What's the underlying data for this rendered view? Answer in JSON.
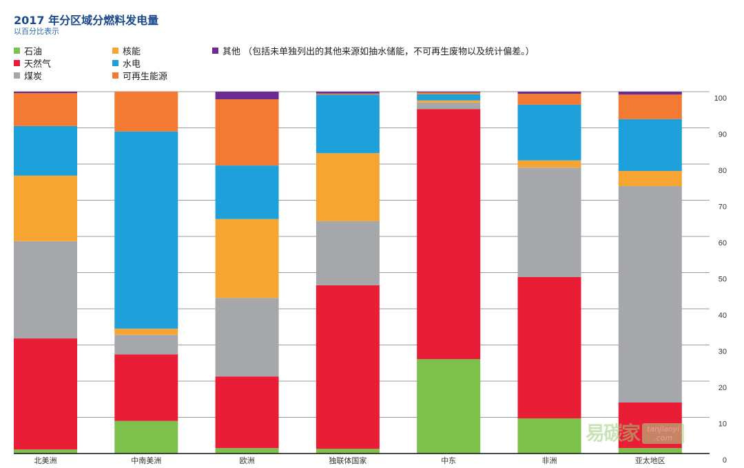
{
  "chart_data": {
    "type": "bar",
    "stacked": true,
    "title": "2017 年分区域分燃料发电量",
    "subtitle": "以百分比表示",
    "xlabel": "",
    "ylabel": "",
    "ylim": [
      0,
      100
    ],
    "yticks": [
      "0",
      "10",
      "20",
      "30",
      "40",
      "50",
      "60",
      "70",
      "80",
      "90",
      "100"
    ],
    "grid": true,
    "legend_position": "top-left",
    "categories": [
      "北美洲",
      "中南美洲",
      "欧洲",
      "独联体国家",
      "中东",
      "非洲",
      "亚太地区"
    ],
    "series": [
      {
        "name": "石油",
        "color": "#7dc04b",
        "values": [
          1.1,
          9.0,
          1.5,
          1.3,
          26.1,
          9.7,
          1.5
        ]
      },
      {
        "name": "天然气",
        "color": "#e91e36",
        "values": [
          30.7,
          18.4,
          19.8,
          45.2,
          69.1,
          39.1,
          12.6
        ]
      },
      {
        "name": "煤炭",
        "color": "#a6a7aa",
        "values": [
          26.9,
          5.4,
          21.7,
          17.7,
          1.8,
          30.2,
          59.8
        ]
      },
      {
        "name": "核能",
        "color": "#f7a532",
        "values": [
          18.1,
          1.7,
          21.8,
          18.8,
          0.6,
          2.0,
          4.2
        ]
      },
      {
        "name": "水电",
        "color": "#1ea1da",
        "values": [
          13.7,
          54.5,
          14.8,
          16.2,
          1.7,
          15.4,
          14.3
        ]
      },
      {
        "name": "可再生能源",
        "color": "#f37a33",
        "values": [
          9.1,
          11.0,
          18.3,
          0.3,
          0.5,
          3.0,
          6.8
        ]
      },
      {
        "name": "其他 （包括未单独列出的其他来源如抽水储能，不可再生废物以及统计偏差。）",
        "color": "#6a2c91",
        "values": [
          0.4,
          0.0,
          2.1,
          0.5,
          0.2,
          0.6,
          0.8
        ]
      }
    ]
  },
  "watermark": {
    "cn": "易碳家",
    "en1": "tanjiaoyi",
    "en2": ".com"
  }
}
